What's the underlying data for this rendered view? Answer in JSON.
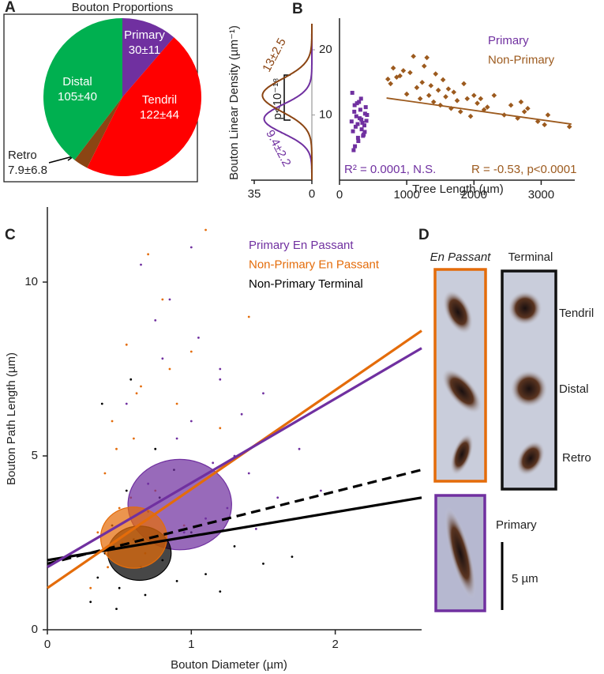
{
  "chart_data": [
    {
      "type": "pie",
      "panel": "A",
      "title": "Bouton Proportions",
      "categories": [
        "Primary",
        "Tendril",
        "Retro",
        "Distal"
      ],
      "values": [
        30,
        122,
        7.9,
        105
      ],
      "value_labels": [
        "30±11",
        "122±44",
        "7.9±6.8",
        "105±40"
      ],
      "colors": [
        "#7030a0",
        "#ff0000",
        "#8b4513",
        "#00b050"
      ]
    },
    {
      "type": "density",
      "panel": "B",
      "ylabel": "Bouton Linear Density (µm⁻¹)",
      "xlim": [
        35,
        0
      ],
      "xticks": [
        35,
        0
      ],
      "ylim": [
        0,
        24
      ],
      "yticks": [
        10,
        20
      ],
      "series": [
        {
          "color": "#7030a0",
          "mean": 9.4,
          "sd": 2.2,
          "peak": 29,
          "label": "9.4±2.2"
        },
        {
          "color": "#8b4513",
          "mean": 13,
          "sd": 2.5,
          "peak": 30,
          "label": "13±2.5"
        }
      ],
      "annotation": "p<10⁻¹⁸"
    },
    {
      "type": "scatter",
      "xlabel": "Tree Length (µm)",
      "xlim": [
        0,
        3500
      ],
      "xticks": [
        0,
        1000,
        2000,
        3000
      ],
      "ylim": [
        0,
        24
      ],
      "series": [
        {
          "name": "Primary",
          "color": "#7030a0",
          "marker": "square",
          "x": [
            180,
            200,
            220,
            240,
            260,
            280,
            300,
            320,
            340,
            360,
            380,
            400,
            190,
            230,
            270,
            310,
            350,
            390,
            210,
            250,
            290,
            330,
            370,
            410,
            225,
            275,
            325,
            375
          ],
          "values": [
            9.0,
            7.5,
            10.5,
            8.2,
            11.8,
            6.0,
            9.5,
            12.5,
            8.8,
            7.0,
            10.2,
            9.1,
            13.4,
            5.2,
            8.6,
            10.8,
            6.8,
            11.2,
            4.6,
            9.8,
            12.0,
            7.8,
            8.4,
            10.0,
            11.5,
            6.5,
            9.3,
            7.4
          ]
        },
        {
          "name": "Non-Primary",
          "color": "#9c5a1e",
          "marker": "diamond",
          "x": [
            720,
            760,
            800,
            850,
            900,
            950,
            1000,
            1050,
            1100,
            1150,
            1200,
            1230,
            1260,
            1300,
            1330,
            1360,
            1400,
            1430,
            1470,
            1500,
            1540,
            1580,
            1620,
            1660,
            1700,
            1750,
            1800,
            1850,
            1900,
            1950,
            2000,
            2050,
            2100,
            2150,
            2200,
            2300,
            2450,
            2550,
            2650,
            2700,
            2750,
            2800,
            2950,
            3050,
            3100,
            3420
          ],
          "values": [
            15.5,
            14.8,
            17.2,
            15.8,
            16.0,
            16.8,
            13.2,
            16.5,
            19.0,
            14.2,
            12.5,
            15.0,
            17.5,
            18.8,
            13.0,
            14.5,
            12.0,
            16.3,
            13.8,
            11.5,
            15.4,
            12.8,
            14.0,
            11.0,
            13.5,
            12.2,
            10.5,
            14.8,
            12.5,
            9.8,
            13.0,
            11.8,
            12.5,
            10.8,
            11.2,
            13.0,
            10.0,
            11.5,
            9.5,
            12.0,
            10.5,
            11.0,
            9.0,
            8.5,
            10.0,
            8.2
          ]
        },
        {
          "type": "line",
          "color": "#9c5a1e",
          "x": [
            700,
            3450
          ],
          "values": [
            12.6,
            8.6
          ]
        }
      ],
      "annotations": [
        {
          "text": "R² = 0.0001, N.S.",
          "color": "#7030a0"
        },
        {
          "text": "R = -0.53, p<0.0001",
          "color": "#9c5a1e"
        }
      ]
    },
    {
      "type": "scatter",
      "panel": "C",
      "xlabel": "Bouton Diameter (µm)",
      "ylabel": "Bouton Path Length (µm)",
      "xlim": [
        0,
        2.6
      ],
      "xticks": [
        0,
        1,
        2
      ],
      "ylim": [
        0,
        12
      ],
      "yticks": [
        0,
        5,
        10
      ],
      "series": [
        {
          "name": "Primary En Passant",
          "color": "#7030a0",
          "x": [
            0.55,
            0.7,
            0.8,
            0.9,
            1.0,
            1.1,
            1.2,
            1.3,
            1.4,
            1.5,
            1.6,
            1.75,
            0.85,
            0.95,
            1.05,
            1.15,
            1.25,
            0.65,
            1.35,
            1.45,
            0.75,
            1.9,
            1.0,
            1.2
          ],
          "values": [
            6.5,
            4.2,
            7.8,
            5.5,
            6.0,
            3.2,
            7.2,
            5.0,
            4.5,
            6.8,
            3.8,
            5.2,
            9.5,
            2.8,
            8.4,
            4.8,
            3.5,
            10.5,
            6.2,
            2.9,
            8.9,
            4.0,
            11.0,
            7.5
          ]
        },
        {
          "name": "Non-Primary En Passant",
          "color": "#e46c0a",
          "x": [
            0.3,
            0.35,
            0.4,
            0.45,
            0.5,
            0.55,
            0.6,
            0.65,
            0.7,
            0.75,
            0.8,
            0.9,
            1.0,
            1.1,
            0.42,
            0.48,
            0.52,
            0.58,
            0.62,
            0.68,
            0.85,
            0.95,
            1.2,
            1.4
          ],
          "values": [
            1.2,
            2.8,
            4.5,
            6.0,
            3.5,
            8.2,
            5.5,
            7.0,
            10.8,
            4.0,
            9.5,
            6.5,
            8.0,
            11.5,
            1.8,
            5.2,
            2.5,
            3.8,
            6.8,
            2.2,
            7.5,
            3.0,
            5.8,
            9.0
          ]
        },
        {
          "name": "Non-Primary Terminal",
          "color": "#000000",
          "x": [
            0.3,
            0.35,
            0.4,
            0.45,
            0.5,
            0.55,
            0.6,
            0.65,
            0.7,
            0.75,
            0.8,
            0.9,
            1.0,
            1.1,
            1.3,
            1.5,
            0.38,
            0.48,
            0.58,
            0.68,
            0.78,
            0.88,
            1.2,
            1.7
          ],
          "values": [
            0.8,
            1.5,
            2.2,
            3.0,
            1.2,
            4.0,
            2.6,
            1.8,
            3.4,
            5.2,
            2.0,
            1.4,
            2.8,
            1.6,
            2.4,
            1.9,
            6.5,
            0.6,
            7.2,
            1.0,
            3.8,
            4.6,
            1.1,
            2.1
          ]
        }
      ],
      "ellipses": [
        {
          "color": "#7030a0",
          "cx": 0.92,
          "cy": 3.6,
          "rx": 0.36,
          "ry": 1.3
        },
        {
          "color": "#000000",
          "cx": 0.64,
          "cy": 2.2,
          "rx": 0.22,
          "ry": 0.78
        },
        {
          "color": "#e46c0a",
          "cx": 0.6,
          "cy": 2.65,
          "rx": 0.23,
          "ry": 0.88
        }
      ],
      "fits": [
        {
          "color": "#000000",
          "dash": true,
          "x": [
            0,
            2.6
          ],
          "values": [
            1.9,
            4.6
          ]
        },
        {
          "color": "#000000",
          "dash": false,
          "x": [
            0,
            2.6
          ],
          "values": [
            2.0,
            3.8
          ]
        },
        {
          "color": "#e46c0a",
          "dash": false,
          "x": [
            0,
            2.6
          ],
          "values": [
            1.2,
            8.6
          ]
        },
        {
          "color": "#7030a0",
          "dash": false,
          "x": [
            0,
            2.6
          ],
          "values": [
            1.8,
            8.1
          ]
        }
      ]
    }
  ],
  "panel_d": {
    "letter": "D",
    "columns": [
      "En Passant",
      "Terminal"
    ],
    "rows": [
      "Tendril",
      "Distal",
      "Retro"
    ],
    "primary": "Primary",
    "scale_bar": "5 µm"
  }
}
